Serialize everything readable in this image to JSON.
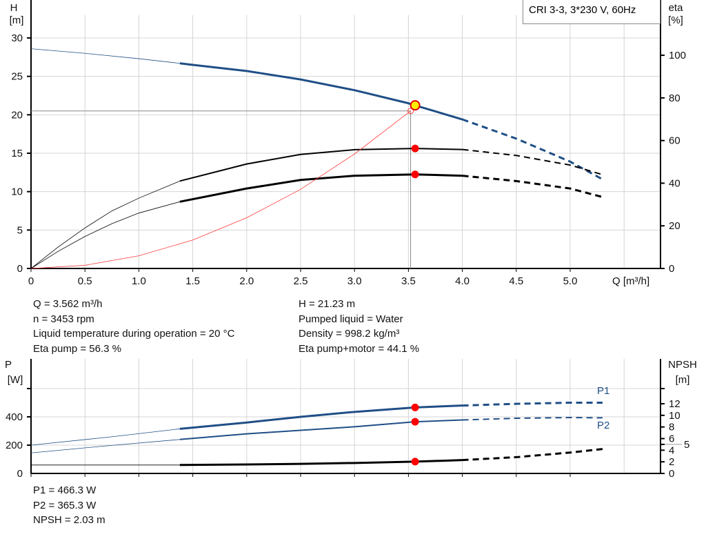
{
  "legend_box": "CRI 3-3, 3*230 V, 60Hz",
  "info_top": {
    "left": [
      "Q = 3.562 m³/h",
      "n = 3453 rpm",
      "Liquid temperature during operation = 20 °C",
      "Eta pump = 56.3 %"
    ],
    "right": [
      "H = 21.23 m",
      "Pumped liquid = Water",
      "Density = 998.2 kg/m³",
      "Eta pump+motor = 44.1 %"
    ]
  },
  "info_bottom": [
    "P1 = 466.3 W",
    "P2 = 365.3 W",
    "NPSH = 2.03 m"
  ],
  "colors": {
    "head": "#1f4e86",
    "eta": "#000000",
    "system": "#ff3b3b",
    "power": "#1f4e86",
    "npsh": "#000000",
    "grid": "#d4d4d4",
    "op_point": "#ff0000"
  },
  "chart_data": [
    {
      "type": "line",
      "xlabel": "Q [m³/h]",
      "ylabel": "H [m]",
      "y2label": "eta [%]",
      "ylabel_lines": [
        "H",
        "[m]"
      ],
      "y2label_lines": [
        "eta",
        "[%]"
      ],
      "xlim": [
        0,
        5.8
      ],
      "ylim": [
        0,
        33
      ],
      "y2lim": [
        0,
        118.8
      ],
      "grid": true,
      "xticks": [
        "0",
        "0.5",
        "1.0",
        "1.5",
        "2.0",
        "2.5",
        "3.0",
        "3.5",
        "4.0",
        "4.5",
        "5.0"
      ],
      "yticks": [
        0,
        5,
        10,
        15,
        20,
        25,
        30
      ],
      "y2ticks": [
        0,
        20,
        40,
        60,
        80,
        100
      ],
      "operating_point": {
        "Q": 3.562,
        "H": 21.23,
        "eta_pump": 56.3,
        "eta_total": 44.1
      },
      "system_point": {
        "Q": 3.52,
        "H": 20.5
      },
      "series": [
        {
          "key": "H",
          "axis": "y",
          "x": [
            0,
            0.5,
            1.0,
            1.38,
            1.5,
            2.0,
            2.5,
            3.0,
            3.5,
            3.562,
            4.0,
            4.5,
            5.0,
            5.3
          ],
          "y": [
            28.6,
            28.0,
            27.3,
            26.7,
            26.5,
            25.7,
            24.6,
            23.2,
            21.5,
            21.23,
            19.4,
            16.9,
            13.9,
            11.6
          ],
          "solid_range": [
            1.38,
            4.0
          ]
        },
        {
          "key": "eta_pump",
          "axis": "y2",
          "x": [
            0,
            0.25,
            0.5,
            0.75,
            1.0,
            1.38,
            2.0,
            2.5,
            3.0,
            3.562,
            4.0,
            4.5,
            5.0,
            5.3
          ],
          "y": [
            0,
            10,
            19,
            27,
            33,
            41,
            49,
            53.5,
            55.7,
            56.3,
            55.8,
            53,
            48.5,
            44
          ],
          "solid_range": [
            1.38,
            4.0
          ]
        },
        {
          "key": "eta_total",
          "axis": "y2",
          "x": [
            0,
            0.25,
            0.5,
            0.75,
            1.0,
            1.38,
            2.0,
            2.5,
            3.0,
            3.562,
            4.0,
            4.5,
            5.0,
            5.3
          ],
          "y": [
            0,
            8,
            15,
            21,
            26,
            31.3,
            37.5,
            41.5,
            43.5,
            44.1,
            43.5,
            41,
            37.5,
            33.5
          ],
          "solid_range": [
            1.38,
            4.0
          ]
        },
        {
          "key": "system",
          "axis": "y",
          "x": [
            0,
            0.5,
            1.0,
            1.5,
            2.0,
            2.5,
            3.0,
            3.52
          ],
          "y": [
            0,
            0.41,
            1.65,
            3.7,
            6.6,
            10.3,
            14.9,
            20.5
          ]
        }
      ]
    },
    {
      "type": "line",
      "ylabel": "P [W]",
      "y2label": "NPSH [m]",
      "ylabel_lines": [
        "P",
        "[W]"
      ],
      "y2label_lines": [
        "NPSH",
        "[m]"
      ],
      "xlim": [
        0,
        5.8
      ],
      "ylim": [
        0,
        600
      ],
      "y2lim": [
        0,
        14.6
      ],
      "grid": true,
      "yticks": [
        0,
        200,
        400
      ],
      "y2ticks": [
        "0",
        "2",
        "4",
        "5",
        "6",
        "8",
        "10",
        "12"
      ],
      "labels": [
        "P1",
        "P2"
      ],
      "series": [
        {
          "key": "P1",
          "name": "P1",
          "axis": "y",
          "x": [
            0,
            0.7,
            1.38,
            2.0,
            2.5,
            3.0,
            3.562,
            4.0,
            4.5,
            5.0,
            5.3
          ],
          "y": [
            200,
            255,
            315,
            360,
            400,
            435,
            466.3,
            480,
            492,
            500,
            500
          ],
          "solid_range": [
            1.38,
            4.0
          ]
        },
        {
          "key": "P2",
          "name": "P2",
          "axis": "y",
          "x": [
            0,
            0.7,
            1.38,
            2.0,
            2.5,
            3.0,
            3.562,
            4.0,
            4.5,
            5.0,
            5.3
          ],
          "y": [
            145,
            195,
            240,
            280,
            305,
            330,
            365.3,
            378,
            390,
            395,
            393
          ],
          "solid_range": [
            1.38,
            4.0
          ]
        },
        {
          "key": "NPSH",
          "axis": "y2",
          "x": [
            0,
            1.38,
            2.0,
            2.5,
            3.0,
            3.562,
            4.0,
            4.5,
            5.0,
            5.3
          ],
          "y": [
            1.45,
            1.45,
            1.55,
            1.65,
            1.8,
            2.03,
            2.3,
            2.8,
            3.6,
            4.2
          ],
          "solid_range": [
            1.38,
            4.0
          ]
        }
      ]
    }
  ]
}
